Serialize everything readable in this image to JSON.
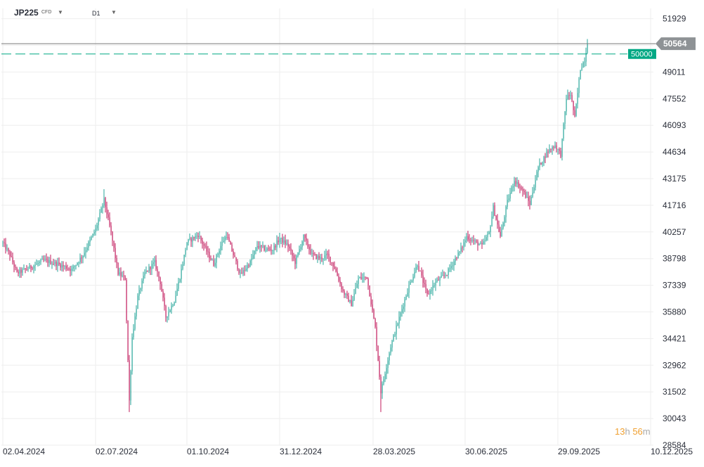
{
  "toolbar": {
    "symbol": "JP225",
    "symbol_type": "CFD",
    "symbol_caret": "▼",
    "timeframe": "D1",
    "timeframe_caret": "▼"
  },
  "timer": {
    "hours": "13",
    "h": "h",
    "minutes": "56",
    "m": "m"
  },
  "colors": {
    "up": "#26a69a",
    "down": "#c2185b",
    "grid": "#eeeeee",
    "order_line": "#00a884",
    "price_badge": "#8e9295"
  },
  "chart_data": {
    "type": "candlestick",
    "title": "JP225",
    "timeframe": "D1",
    "ylim": [
      28584,
      52300
    ],
    "y_ticks": [
      51929,
      50470,
      49011,
      47552,
      46093,
      44634,
      43175,
      41716,
      40257,
      38798,
      37339,
      35880,
      34421,
      32962,
      31502,
      30043,
      28584
    ],
    "x_tick_labels": [
      "02.04.2024",
      "02.07.2024",
      "01.10.2024",
      "31.12.2024",
      "28.03.2025",
      "30.06.2025",
      "29.09.2025",
      "10.12.2025"
    ],
    "current_price": 50564,
    "order_level": 50000,
    "grid": true,
    "candles": []
  }
}
